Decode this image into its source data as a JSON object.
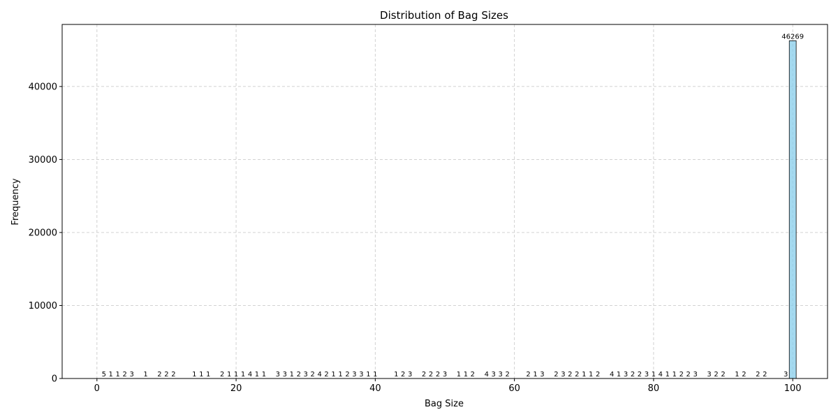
{
  "chart_data": {
    "type": "bar",
    "title": "Distribution of Bag Sizes",
    "xlabel": "Bag Size",
    "ylabel": "Frequency",
    "xlim": [
      -5,
      105
    ],
    "ylim": [
      0,
      48500
    ],
    "xticks": [
      0,
      20,
      40,
      60,
      80,
      100
    ],
    "yticks": [
      0,
      10000,
      20000,
      30000,
      40000
    ],
    "grid": true,
    "bar_color": "#87ceeb",
    "x": [
      1,
      2,
      3,
      4,
      5,
      7,
      9,
      10,
      11,
      14,
      15,
      16,
      18,
      19,
      20,
      21,
      22,
      23,
      24,
      26,
      27,
      28,
      29,
      30,
      31,
      32,
      33,
      34,
      35,
      36,
      37,
      38,
      39,
      40,
      43,
      44,
      45,
      47,
      48,
      49,
      50,
      52,
      53,
      54,
      56,
      57,
      58,
      59,
      62,
      63,
      64,
      66,
      67,
      68,
      69,
      70,
      71,
      72,
      74,
      75,
      76,
      77,
      78,
      79,
      80,
      81,
      82,
      83,
      84,
      85,
      86,
      88,
      89,
      90,
      92,
      93,
      95,
      96,
      99,
      100
    ],
    "values": [
      5,
      1,
      1,
      2,
      3,
      1,
      2,
      2,
      2,
      1,
      1,
      1,
      2,
      1,
      1,
      1,
      4,
      1,
      1,
      3,
      3,
      1,
      2,
      3,
      2,
      4,
      2,
      1,
      1,
      2,
      3,
      3,
      1,
      1,
      1,
      2,
      3,
      2,
      2,
      2,
      3,
      1,
      1,
      2,
      4,
      3,
      3,
      2,
      2,
      1,
      3,
      2,
      3,
      2,
      2,
      1,
      1,
      2,
      4,
      1,
      3,
      2,
      2,
      3,
      1,
      4,
      1,
      1,
      2,
      2,
      3,
      3,
      2,
      2,
      1,
      2,
      2,
      2,
      3,
      46269
    ],
    "data_labels": [
      "5",
      "1",
      "1",
      "2",
      "3",
      "1",
      "2",
      "2",
      "2",
      "1",
      "1",
      "1",
      "2",
      "1",
      "1",
      "1",
      "4",
      "1",
      "1",
      "3",
      "3",
      "1",
      "2",
      "3",
      "2",
      "4",
      "2",
      "1",
      "1",
      "2",
      "3",
      "3",
      "1",
      "1",
      "1",
      "2",
      "3",
      "2",
      "2",
      "2",
      "3",
      "1",
      "1",
      "2",
      "4",
      "3",
      "3",
      "2",
      "2",
      "1",
      "3",
      "2",
      "3",
      "2",
      "2",
      "1",
      "1",
      "2",
      "4",
      "1",
      "3",
      "2",
      "2",
      "3",
      "1",
      "4",
      "1",
      "1",
      "2",
      "2",
      "3",
      "3",
      "2",
      "2",
      "1",
      "2",
      "2",
      "2",
      "3",
      "46269"
    ]
  }
}
